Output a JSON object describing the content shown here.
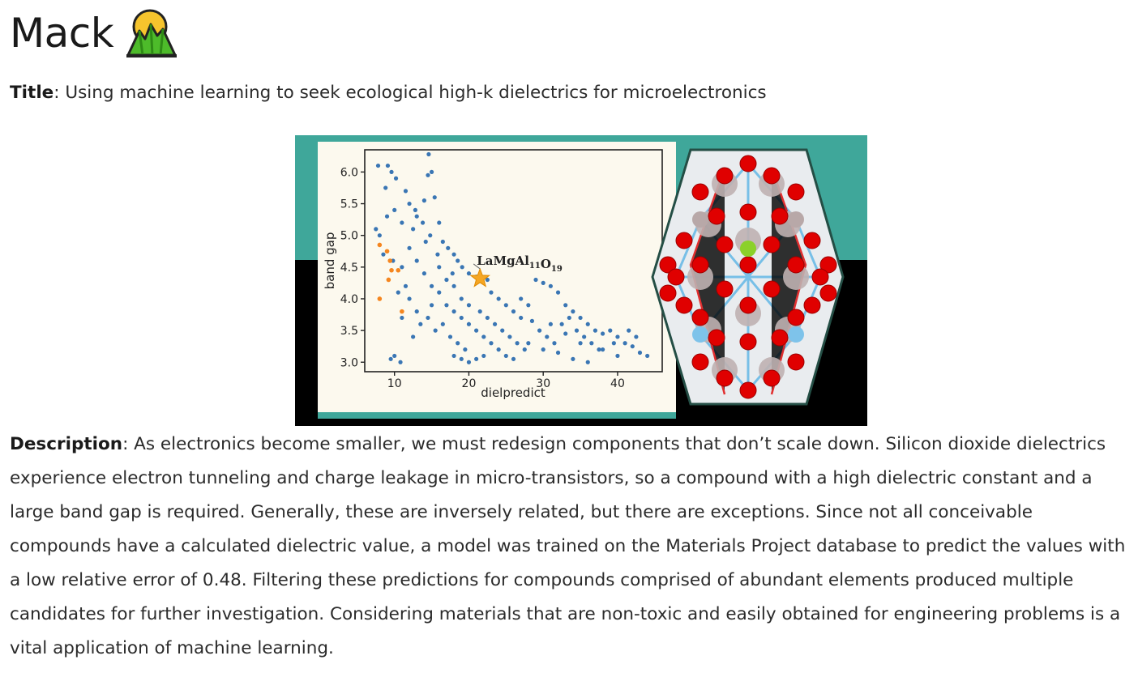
{
  "heading": {
    "text": "Mack",
    "icon": "mountain-emoji-icon"
  },
  "title": {
    "label": "Title",
    "separator": ":",
    "text": "Using machine learning to seek ecological high-k dielectrics for microelectronics"
  },
  "figure": {
    "colors": {
      "teal": "#3fa79a",
      "black": "#000000",
      "plot_bg": "#fcf9ee",
      "dots": "#3a76b4",
      "orange_dots": "#f5861f",
      "star": "#f5a623",
      "atom_red": "#e00000",
      "atom_gray": "#bfb1b1",
      "atom_blue": "#7ec3ea",
      "atom_green": "#8bd12a"
    },
    "crystal_icon": "crystal-structure-icon",
    "chart_data": {
      "type": "scatter",
      "xlabel": "dielpredict",
      "ylabel": "band gap",
      "xlim": [
        6,
        46
      ],
      "ylim": [
        2.85,
        6.35
      ],
      "x_ticks": [
        10,
        20,
        30,
        40
      ],
      "y_ticks": [
        3.0,
        3.5,
        4.0,
        4.5,
        5.0,
        5.5,
        6.0
      ],
      "x_tick_labels": [
        "10",
        "20",
        "30",
        "40"
      ],
      "y_tick_labels": [
        "3.0",
        "3.5",
        "4.0",
        "4.5",
        "5.0",
        "5.5",
        "6.0"
      ],
      "grid": false,
      "series": [
        {
          "color": "#3a76b4",
          "points": [
            [
              7.8,
              6.1
            ],
            [
              9.1,
              6.1
            ],
            [
              9.6,
              6.0
            ],
            [
              8.8,
              5.75
            ],
            [
              10.2,
              5.9
            ],
            [
              11.5,
              5.7
            ],
            [
              12.0,
              5.5
            ],
            [
              14.0,
              5.55
            ],
            [
              14.5,
              5.95
            ],
            [
              15.0,
              6.0
            ],
            [
              14.6,
              6.28
            ],
            [
              15.4,
              5.6
            ],
            [
              9.0,
              5.3
            ],
            [
              10.0,
              5.4
            ],
            [
              11.0,
              5.2
            ],
            [
              12.5,
              5.1
            ],
            [
              13.0,
              5.3
            ],
            [
              14.8,
              5.0
            ],
            [
              16.0,
              5.2
            ],
            [
              16.5,
              4.9
            ],
            [
              17.2,
              4.8
            ],
            [
              18.0,
              4.7
            ],
            [
              18.5,
              4.6
            ],
            [
              19.1,
              4.5
            ],
            [
              20.0,
              4.4
            ],
            [
              21.0,
              4.35
            ],
            [
              22.5,
              4.3
            ],
            [
              23.0,
              4.1
            ],
            [
              24.0,
              4.0
            ],
            [
              25.0,
              3.9
            ],
            [
              26.0,
              3.8
            ],
            [
              27.0,
              3.7
            ],
            [
              28.5,
              3.65
            ],
            [
              29.0,
              4.3
            ],
            [
              30.0,
              4.25
            ],
            [
              31.0,
              4.2
            ],
            [
              32.0,
              4.1
            ],
            [
              33.0,
              3.9
            ],
            [
              34.0,
              3.8
            ],
            [
              35.0,
              3.7
            ],
            [
              36.0,
              3.6
            ],
            [
              37.0,
              3.5
            ],
            [
              38.0,
              3.45
            ],
            [
              39.0,
              3.5
            ],
            [
              40.0,
              3.4
            ],
            [
              41.0,
              3.3
            ],
            [
              42.0,
              3.25
            ],
            [
              43.0,
              3.15
            ],
            [
              44.0,
              3.1
            ],
            [
              12.0,
              4.8
            ],
            [
              13.0,
              4.6
            ],
            [
              14.0,
              4.4
            ],
            [
              15.0,
              4.2
            ],
            [
              16.0,
              4.1
            ],
            [
              17.0,
              3.9
            ],
            [
              18.0,
              3.8
            ],
            [
              19.0,
              3.7
            ],
            [
              20.0,
              3.6
            ],
            [
              21.0,
              3.5
            ],
            [
              22.0,
              3.4
            ],
            [
              23.0,
              3.3
            ],
            [
              24.0,
              3.2
            ],
            [
              25.0,
              3.1
            ],
            [
              26.0,
              3.05
            ],
            [
              18.0,
              3.1
            ],
            [
              19.0,
              3.05
            ],
            [
              20.0,
              3.0
            ],
            [
              21.0,
              3.05
            ],
            [
              22.0,
              3.1
            ],
            [
              10.0,
              3.1
            ],
            [
              10.8,
              3.0
            ],
            [
              9.5,
              3.05
            ],
            [
              28.0,
              3.3
            ],
            [
              30.0,
              3.2
            ],
            [
              32.0,
              3.15
            ],
            [
              34.0,
              3.05
            ],
            [
              36.0,
              3.0
            ],
            [
              27.0,
              4.0
            ],
            [
              28.0,
              3.9
            ],
            [
              31.0,
              3.6
            ],
            [
              33.0,
              3.45
            ],
            [
              35.0,
              3.3
            ],
            [
              38.0,
              3.2
            ],
            [
              40.0,
              3.1
            ],
            [
              11.0,
              4.5
            ],
            [
              11.5,
              4.2
            ],
            [
              12.0,
              4.0
            ],
            [
              13.0,
              3.8
            ],
            [
              13.5,
              3.6
            ],
            [
              12.5,
              3.4
            ],
            [
              11.0,
              3.7
            ],
            [
              10.5,
              4.1
            ],
            [
              9.8,
              4.6
            ],
            [
              8.0,
              5.0
            ],
            [
              8.5,
              4.7
            ],
            [
              7.5,
              5.1
            ],
            [
              16.5,
              3.6
            ],
            [
              17.5,
              3.4
            ],
            [
              18.5,
              3.3
            ],
            [
              19.5,
              3.2
            ],
            [
              15.5,
              3.5
            ],
            [
              14.5,
              3.7
            ],
            [
              15.0,
              3.9
            ],
            [
              16.0,
              4.5
            ],
            [
              17.0,
              4.3
            ],
            [
              18.0,
              4.2
            ],
            [
              19.0,
              4.0
            ],
            [
              20.0,
              3.9
            ],
            [
              21.5,
              3.8
            ],
            [
              22.5,
              3.7
            ],
            [
              23.5,
              3.6
            ],
            [
              24.5,
              3.5
            ],
            [
              25.5,
              3.4
            ],
            [
              26.5,
              3.3
            ],
            [
              27.5,
              3.2
            ],
            [
              29.5,
              3.5
            ],
            [
              30.5,
              3.4
            ],
            [
              31.5,
              3.3
            ],
            [
              32.5,
              3.6
            ],
            [
              33.5,
              3.7
            ],
            [
              34.5,
              3.5
            ],
            [
              35.5,
              3.4
            ],
            [
              36.5,
              3.3
            ],
            [
              37.5,
              3.2
            ],
            [
              39.5,
              3.3
            ],
            [
              41.5,
              3.5
            ],
            [
              42.5,
              3.4
            ],
            [
              13.8,
              5.2
            ],
            [
              12.8,
              5.4
            ],
            [
              15.8,
              4.7
            ],
            [
              14.2,
              4.9
            ],
            [
              17.8,
              4.4
            ]
          ]
        },
        {
          "color": "#f5861f",
          "points": [
            [
              8.0,
              4.85
            ],
            [
              9.0,
              4.75
            ],
            [
              9.4,
              4.6
            ],
            [
              9.6,
              4.45
            ],
            [
              9.2,
              4.3
            ],
            [
              10.5,
              4.45
            ],
            [
              8.0,
              4.0
            ],
            [
              11.0,
              3.8
            ]
          ]
        }
      ],
      "highlight": {
        "x": 21.5,
        "y": 4.32,
        "marker": "star"
      },
      "annotation": {
        "parts": [
          {
            "text": "LaMgAl",
            "sub": false
          },
          {
            "text": "11",
            "sub": true
          },
          {
            "text": "O",
            "sub": false
          },
          {
            "text": "19",
            "sub": true
          }
        ],
        "x": 21.5,
        "y": 4.32
      }
    }
  },
  "description": {
    "label": "Description",
    "separator": ":",
    "text": "As electronics become smaller, we must redesign components that don’t scale down. Silicon dioxide dielectrics experience electron tunneling and charge leakage in micro-transistors, so a compound with a high dielectric constant and a large band gap is required. Generally, these are inversely related, but there are exceptions. Since not all conceivable compounds have a calculated dielectric value, a model was trained on the Materials Project database to predict the values with a low relative error of 0.48. Filtering these predictions for compounds comprised of abundant elements produced multiple candidates for further investigation. Considering materials that are non-toxic and easily obtained for engineering problems is a vital application of machine learning."
  }
}
